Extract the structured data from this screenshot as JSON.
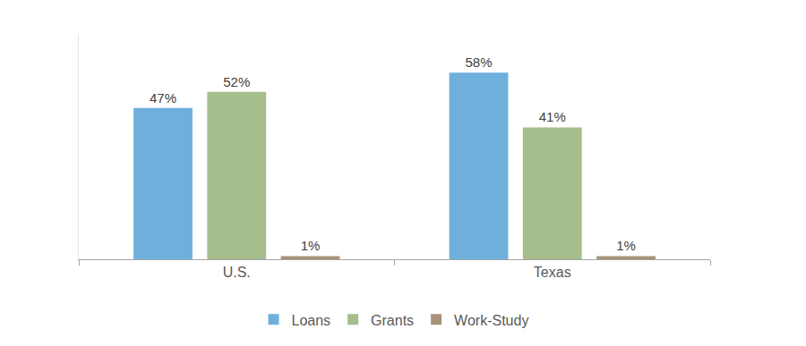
{
  "chart_data": {
    "type": "bar",
    "categories": [
      "U.S.",
      "Texas"
    ],
    "series": [
      {
        "name": "Loans",
        "color": "#6fafdc",
        "values": [
          47,
          58
        ],
        "value_labels": [
          "47%",
          "58%"
        ]
      },
      {
        "name": "Grants",
        "color": "#a6bd8c",
        "values": [
          52,
          41
        ],
        "value_labels": [
          "52%",
          "41%"
        ]
      },
      {
        "name": "Work-Study",
        "color": "#a8927a",
        "values": [
          1,
          1
        ],
        "value_labels": [
          "1%",
          "1%"
        ]
      }
    ],
    "ylim": [
      0,
      70
    ],
    "grid": false,
    "legend": "bottom",
    "data_labels": true,
    "tick_labels": "x"
  }
}
